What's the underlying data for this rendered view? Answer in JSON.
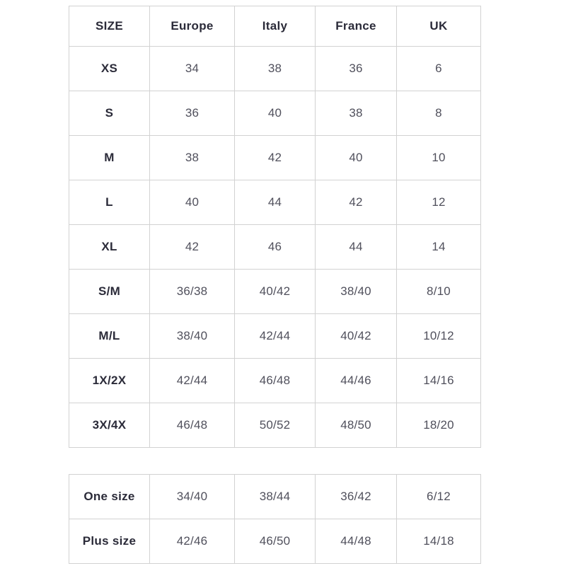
{
  "colors": {
    "background": "#ffffff",
    "border": "#d2d2d2",
    "header_text": "#2b2b39",
    "value_text": "#50505c"
  },
  "chart_data": {
    "type": "table",
    "tables": [
      {
        "name": "standard-sizes",
        "columns": [
          "SIZE",
          "Europe",
          "Italy",
          "France",
          "UK"
        ],
        "rows": [
          [
            "XS",
            "34",
            "38",
            "36",
            "6"
          ],
          [
            "S",
            "36",
            "40",
            "38",
            "8"
          ],
          [
            "M",
            "38",
            "42",
            "40",
            "10"
          ],
          [
            "L",
            "40",
            "44",
            "42",
            "12"
          ],
          [
            "XL",
            "42",
            "46",
            "44",
            "14"
          ],
          [
            "S/M",
            "36/38",
            "40/42",
            "38/40",
            "8/10"
          ],
          [
            "M/L",
            "38/40",
            "42/44",
            "40/42",
            "10/12"
          ],
          [
            "1X/2X",
            "42/44",
            "46/48",
            "44/46",
            "14/16"
          ],
          [
            "3X/4X",
            "46/48",
            "50/52",
            "48/50",
            "18/20"
          ]
        ]
      },
      {
        "name": "special-sizes",
        "rows": [
          [
            "One size",
            "34/40",
            "38/44",
            "36/42",
            "6/12"
          ],
          [
            "Plus size",
            "42/46",
            "46/50",
            "44/48",
            "14/18"
          ]
        ]
      }
    ]
  }
}
